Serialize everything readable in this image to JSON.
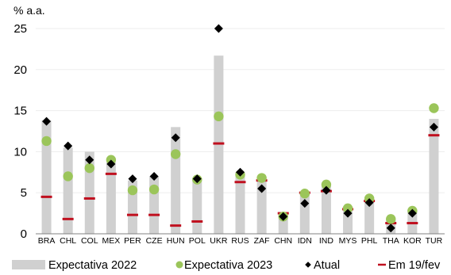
{
  "chart_data": {
    "type": "bar",
    "ylabel": "% a.a.",
    "ylim": [
      0,
      25
    ],
    "yticks": [
      0,
      5,
      10,
      15,
      20,
      25
    ],
    "grid": true,
    "legend_position": "bottom",
    "categories": [
      "BRA",
      "CHL",
      "COL",
      "MEX",
      "PER",
      "CZE",
      "HUN",
      "POL",
      "UKR",
      "RUS",
      "ZAF",
      "CHN",
      "IDN",
      "IND",
      "MYS",
      "PHL",
      "THA",
      "KOR",
      "TUR"
    ],
    "series": [
      {
        "name": "Expectativa 2022",
        "type": "bar",
        "color": "#d0d0d0",
        "values": [
          13.8,
          10.5,
          10.0,
          8.7,
          6.5,
          7.0,
          13.0,
          6.8,
          21.7,
          7.5,
          6.8,
          2.3,
          4.8,
          6.1,
          3.0,
          4.5,
          1.8,
          2.8,
          14.0
        ]
      },
      {
        "name": "Expectativa 2023",
        "type": "scatter",
        "marker": "circle",
        "color": "#9bc55a",
        "values": [
          11.3,
          7.0,
          8.0,
          9.0,
          5.3,
          5.4,
          9.7,
          6.6,
          14.3,
          7.2,
          6.8,
          2.1,
          4.9,
          6.0,
          3.1,
          4.3,
          1.8,
          2.8,
          15.3
        ]
      },
      {
        "name": "Atual",
        "type": "scatter",
        "marker": "diamond",
        "color": "#000000",
        "values": [
          13.7,
          10.7,
          9.0,
          8.5,
          6.7,
          7.0,
          11.7,
          6.7,
          25.0,
          7.5,
          5.5,
          2.1,
          3.7,
          5.3,
          2.5,
          3.8,
          0.7,
          2.5,
          13.0
        ]
      },
      {
        "name": "Em 19/fev",
        "type": "marker-line",
        "color": "#c0101f",
        "values": [
          4.5,
          1.8,
          4.3,
          7.3,
          2.3,
          2.3,
          1.0,
          1.5,
          11.0,
          6.3,
          6.5,
          2.5,
          5.0,
          5.2,
          3.0,
          4.0,
          1.3,
          1.3,
          12.0
        ]
      }
    ]
  }
}
